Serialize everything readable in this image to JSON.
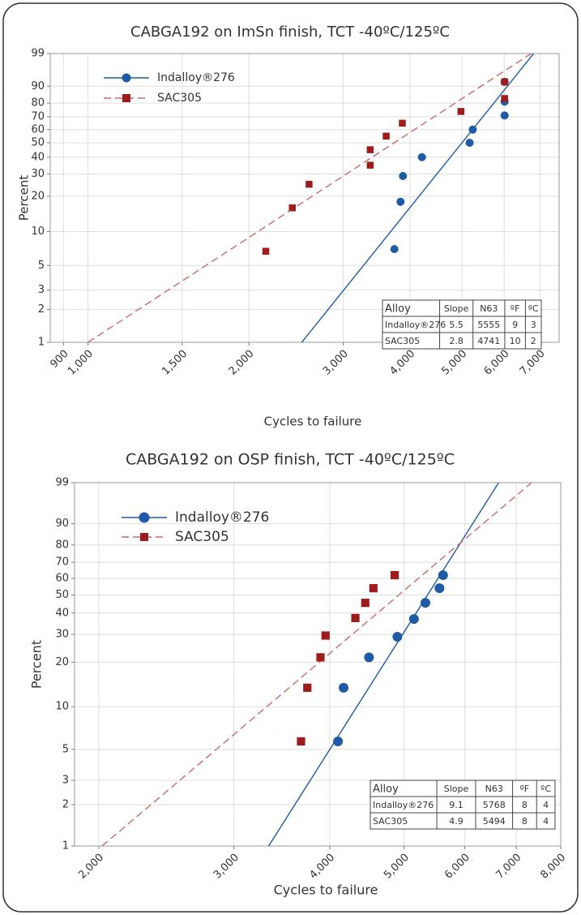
{
  "chart_data": [
    {
      "type": "scatter",
      "title": "CABGA192 on ImSn finish, TCT -40ºC/125ºC",
      "x_label": "Cycles to failure",
      "y_label": "Percent",
      "xscale": "log",
      "yscale": "weibull",
      "grid": true,
      "legend": "upper left",
      "xlim": [
        850,
        7600
      ],
      "ylim": [
        1,
        99
      ],
      "xticks": [
        900,
        {
          "value": 1000,
          "label": "1,000"
        },
        {
          "value": 1500,
          "label": "1,500"
        },
        {
          "value": 2000,
          "label": "2,000"
        },
        {
          "value": 3000,
          "label": "3,000"
        },
        {
          "value": 4000,
          "label": "4,000"
        },
        {
          "value": 5000,
          "label": "5,000"
        },
        {
          "value": 6000,
          "label": "6,000"
        },
        {
          "value": 7000,
          "label": "7,000"
        }
      ],
      "yticks": [
        1,
        2,
        3,
        5,
        10,
        20,
        30,
        40,
        50,
        60,
        70,
        80,
        90,
        99
      ],
      "series": [
        {
          "name": "Indalloy®276",
          "color": "#1f5aa6",
          "marker": "circle",
          "line": "solid",
          "x": [
            3740,
            3840,
            3880,
            4210,
            5170,
            5240,
            6010,
            6010,
            6010
          ],
          "values": [
            7,
            18,
            29,
            40,
            50,
            60,
            71,
            81,
            92
          ],
          "fit": {
            "x": [
              2510,
              6810
            ],
            "values": [
              1,
              99
            ]
          }
        },
        {
          "name": "SAC305",
          "color": "#9e1c1c",
          "marker": "square",
          "line": "dashed",
          "line_color": "#c86a6a",
          "x": [
            2150,
            2410,
            2590,
            3370,
            3370,
            3610,
            3870,
            4980,
            6010,
            6010
          ],
          "values": [
            6.7,
            16,
            25,
            35,
            45,
            55,
            65,
            74,
            83,
            92
          ],
          "fit": {
            "x": [
              1000,
              6740
            ],
            "values": [
              1,
              99
            ]
          }
        }
      ],
      "table": {
        "header": [
          "Alloy",
          "Slope",
          "N63",
          "ºF",
          "ºC"
        ],
        "rows": [
          [
            "Indalloy®276",
            5.5,
            5555,
            9,
            3
          ],
          [
            "SAC305",
            2.8,
            4741,
            10,
            2
          ]
        ]
      }
    },
    {
      "type": "scatter",
      "title": "CABGA192 on OSP finish, TCT -40ºC/125ºC",
      "x_label": "Cycles to failure",
      "y_label": "Percent",
      "xscale": "log",
      "yscale": "weibull",
      "grid": true,
      "legend": "upper left",
      "xlim": [
        1860,
        8000
      ],
      "ylim": [
        1,
        99
      ],
      "xticks": [
        {
          "value": 2000,
          "label": "2,000"
        },
        {
          "value": 3000,
          "label": "3,000"
        },
        {
          "value": 4000,
          "label": "4,000"
        },
        {
          "value": 5000,
          "label": "5,000"
        },
        {
          "value": 6000,
          "label": "6,000"
        },
        {
          "value": 7000,
          "label": "7,000"
        },
        {
          "value": 8000,
          "label": "8,000"
        }
      ],
      "yticks": [
        1,
        2,
        3,
        5,
        10,
        20,
        30,
        40,
        50,
        60,
        70,
        80,
        90,
        99
      ],
      "series": [
        {
          "name": "Indalloy®276",
          "color": "#1f5aa6",
          "marker": "circle",
          "line": "solid",
          "x": [
            4100,
            4170,
            4500,
            4900,
            5150,
            5330,
            5560,
            5620
          ],
          "values": [
            5.7,
            13.5,
            21.5,
            29,
            37,
            45.5,
            54,
            62
          ],
          "fit": {
            "x": [
              3330,
              6640
            ],
            "values": [
              1,
              99
            ]
          }
        },
        {
          "name": "SAC305",
          "color": "#9e1c1c",
          "marker": "square",
          "line": "dashed",
          "line_color": "#c86a6a",
          "x": [
            3670,
            3740,
            3890,
            3950,
            4320,
            4450,
            4560,
            4860
          ],
          "values": [
            5.7,
            13.5,
            21.5,
            29.5,
            37.5,
            45.5,
            54,
            62
          ],
          "fit": {
            "x": [
              2020,
              7330
            ],
            "values": [
              1,
              99
            ]
          }
        }
      ],
      "table": {
        "header": [
          "Alloy",
          "Slope",
          "N63",
          "ºF",
          "ºC"
        ],
        "rows": [
          [
            "Indalloy®276",
            9.1,
            5768,
            8,
            4
          ],
          [
            "SAC305",
            4.9,
            5494,
            8,
            4
          ]
        ]
      }
    }
  ]
}
